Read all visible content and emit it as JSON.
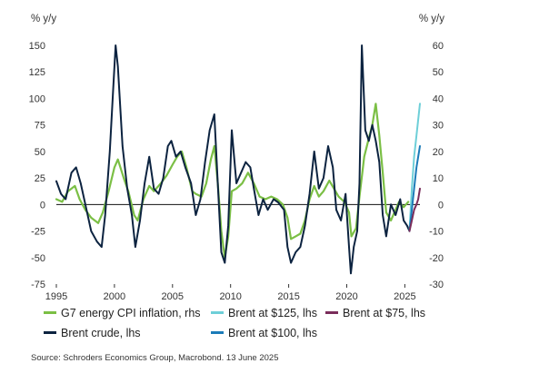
{
  "chart_data": {
    "type": "line",
    "left_axis_unit": "% y/y",
    "right_axis_unit": "% y/y",
    "left_ylim": [
      -75,
      150
    ],
    "right_ylim": [
      -30,
      60
    ],
    "left_ticks": [
      150,
      125,
      100,
      75,
      50,
      25,
      0,
      -25,
      -50,
      -75
    ],
    "right_ticks": [
      60,
      50,
      40,
      30,
      20,
      10,
      0,
      -10,
      -20,
      -30
    ],
    "xlim": [
      1995,
      2026.3
    ],
    "x_ticks": [
      1995,
      2000,
      2005,
      2010,
      2015,
      2020,
      2025
    ],
    "grid": false,
    "zero_line": true,
    "legend_placement": "bottom",
    "series": [
      {
        "name": "G7 energy CPI inflation, rhs",
        "axis": "right",
        "color": "#7bbf45",
        "points": [
          [
            1995,
            2
          ],
          [
            1995.5,
            1
          ],
          [
            1996,
            5
          ],
          [
            1996.6,
            7
          ],
          [
            1997,
            2
          ],
          [
            1997.5,
            -2
          ],
          [
            1998,
            -5
          ],
          [
            1998.6,
            -7
          ],
          [
            1999,
            -3
          ],
          [
            1999.5,
            5
          ],
          [
            2000,
            14
          ],
          [
            2000.3,
            17
          ],
          [
            2000.8,
            10
          ],
          [
            2001.2,
            5
          ],
          [
            2001.7,
            -4
          ],
          [
            2002,
            -6
          ],
          [
            2002.5,
            2
          ],
          [
            2003,
            7
          ],
          [
            2003.4,
            5
          ],
          [
            2004,
            8
          ],
          [
            2004.5,
            11
          ],
          [
            2005,
            15
          ],
          [
            2005.4,
            18
          ],
          [
            2005.8,
            20
          ],
          [
            2006.2,
            14
          ],
          [
            2006.7,
            5
          ],
          [
            2007,
            4
          ],
          [
            2007.5,
            3
          ],
          [
            2007.9,
            8
          ],
          [
            2008.3,
            17
          ],
          [
            2008.6,
            22
          ],
          [
            2008.9,
            8
          ],
          [
            2009.2,
            -10
          ],
          [
            2009.5,
            -20
          ],
          [
            2009.8,
            -12
          ],
          [
            2010.1,
            5
          ],
          [
            2010.5,
            6
          ],
          [
            2011,
            8
          ],
          [
            2011.5,
            12
          ],
          [
            2012,
            8
          ],
          [
            2012.5,
            3
          ],
          [
            2013,
            2
          ],
          [
            2013.5,
            3
          ],
          [
            2014,
            2
          ],
          [
            2014.5,
            0
          ],
          [
            2014.9,
            -5
          ],
          [
            2015.2,
            -13
          ],
          [
            2015.6,
            -12
          ],
          [
            2016,
            -11
          ],
          [
            2016.4,
            -6
          ],
          [
            2016.8,
            2
          ],
          [
            2017.2,
            7
          ],
          [
            2017.6,
            3
          ],
          [
            2018,
            5
          ],
          [
            2018.5,
            9
          ],
          [
            2018.9,
            6
          ],
          [
            2019.3,
            3
          ],
          [
            2019.8,
            1
          ],
          [
            2020.2,
            -3
          ],
          [
            2020.4,
            -12
          ],
          [
            2020.8,
            -9
          ],
          [
            2021.1,
            3
          ],
          [
            2021.5,
            18
          ],
          [
            2021.9,
            25
          ],
          [
            2022.2,
            30
          ],
          [
            2022.5,
            38
          ],
          [
            2022.8,
            26
          ],
          [
            2023.1,
            12
          ],
          [
            2023.4,
            -3
          ],
          [
            2023.8,
            -6
          ],
          [
            2024.1,
            -3
          ],
          [
            2024.5,
            1
          ],
          [
            2024.9,
            -1
          ],
          [
            2025.3,
            1
          ]
        ]
      },
      {
        "name": "Brent crude, lhs",
        "axis": "left",
        "color": "#0c2340",
        "points": [
          [
            1995,
            22
          ],
          [
            1995.4,
            10
          ],
          [
            1995.8,
            5
          ],
          [
            1996.3,
            30
          ],
          [
            1996.7,
            35
          ],
          [
            1997.1,
            20
          ],
          [
            1997.6,
            -5
          ],
          [
            1998,
            -25
          ],
          [
            1998.5,
            -35
          ],
          [
            1998.9,
            -40
          ],
          [
            1999.2,
            -10
          ],
          [
            1999.6,
            50
          ],
          [
            1999.9,
            110
          ],
          [
            2000.1,
            150
          ],
          [
            2000.3,
            130
          ],
          [
            2000.7,
            55
          ],
          [
            2001.1,
            15
          ],
          [
            2001.5,
            -10
          ],
          [
            2001.8,
            -40
          ],
          [
            2002.2,
            -15
          ],
          [
            2002.6,
            20
          ],
          [
            2003,
            45
          ],
          [
            2003.4,
            15
          ],
          [
            2003.8,
            10
          ],
          [
            2004.2,
            25
          ],
          [
            2004.6,
            55
          ],
          [
            2004.9,
            60
          ],
          [
            2005.3,
            45
          ],
          [
            2005.7,
            50
          ],
          [
            2006.1,
            35
          ],
          [
            2006.6,
            20
          ],
          [
            2007,
            -10
          ],
          [
            2007.4,
            5
          ],
          [
            2007.8,
            40
          ],
          [
            2008.2,
            70
          ],
          [
            2008.6,
            85
          ],
          [
            2008.9,
            20
          ],
          [
            2009.2,
            -45
          ],
          [
            2009.5,
            -55
          ],
          [
            2009.8,
            -20
          ],
          [
            2010.1,
            70
          ],
          [
            2010.5,
            20
          ],
          [
            2010.9,
            30
          ],
          [
            2011.3,
            40
          ],
          [
            2011.7,
            35
          ],
          [
            2012,
            15
          ],
          [
            2012.4,
            -10
          ],
          [
            2012.8,
            5
          ],
          [
            2013.2,
            -5
          ],
          [
            2013.7,
            5
          ],
          [
            2014.1,
            2
          ],
          [
            2014.6,
            -5
          ],
          [
            2014.9,
            -40
          ],
          [
            2015.2,
            -55
          ],
          [
            2015.6,
            -45
          ],
          [
            2016,
            -40
          ],
          [
            2016.4,
            -20
          ],
          [
            2016.8,
            10
          ],
          [
            2017.2,
            50
          ],
          [
            2017.6,
            15
          ],
          [
            2018,
            25
          ],
          [
            2018.4,
            55
          ],
          [
            2018.8,
            35
          ],
          [
            2019.1,
            -5
          ],
          [
            2019.5,
            -15
          ],
          [
            2019.9,
            10
          ],
          [
            2020.2,
            -40
          ],
          [
            2020.35,
            -65
          ],
          [
            2020.6,
            -40
          ],
          [
            2020.9,
            -25
          ],
          [
            2021.1,
            20
          ],
          [
            2021.3,
            150
          ],
          [
            2021.6,
            70
          ],
          [
            2021.9,
            60
          ],
          [
            2022.2,
            75
          ],
          [
            2022.5,
            60
          ],
          [
            2022.8,
            40
          ],
          [
            2023.1,
            -10
          ],
          [
            2023.4,
            -30
          ],
          [
            2023.8,
            0
          ],
          [
            2024.2,
            -10
          ],
          [
            2024.6,
            5
          ],
          [
            2024.9,
            -15
          ],
          [
            2025.2,
            -20
          ],
          [
            2025.4,
            -25
          ]
        ]
      },
      {
        "name": "Brent at $125, lhs",
        "axis": "left",
        "color": "#6ecfd8",
        "points": [
          [
            2025.4,
            -25
          ],
          [
            2025.6,
            15
          ],
          [
            2025.8,
            45
          ],
          [
            2026,
            65
          ],
          [
            2026.15,
            80
          ],
          [
            2026.3,
            95
          ]
        ]
      },
      {
        "name": "Brent at $100, lhs",
        "axis": "left",
        "color": "#1b7bb8",
        "points": [
          [
            2025.4,
            -25
          ],
          [
            2025.6,
            -5
          ],
          [
            2025.8,
            15
          ],
          [
            2026,
            35
          ],
          [
            2026.15,
            45
          ],
          [
            2026.3,
            55
          ]
        ]
      },
      {
        "name": "Brent at $75, lhs",
        "axis": "left",
        "color": "#7a2d5b",
        "points": [
          [
            2025.4,
            -25
          ],
          [
            2025.6,
            -15
          ],
          [
            2025.8,
            -5
          ],
          [
            2026,
            0
          ],
          [
            2026.15,
            5
          ],
          [
            2026.3,
            15
          ]
        ]
      }
    ]
  },
  "legend": {
    "items": [
      {
        "label": "G7 energy CPI inflation, rhs",
        "color": "#7bbf45"
      },
      {
        "label": "Brent at $125, lhs",
        "color": "#6ecfd8"
      },
      {
        "label": "Brent at $75, lhs",
        "color": "#7a2d5b"
      },
      {
        "label": "Brent crude, lhs",
        "color": "#0c2340"
      },
      {
        "label": "Brent at $100, lhs",
        "color": "#1b7bb8"
      }
    ]
  },
  "source": "Source: Schroders Economics Group, Macrobond. 13 June 2025"
}
